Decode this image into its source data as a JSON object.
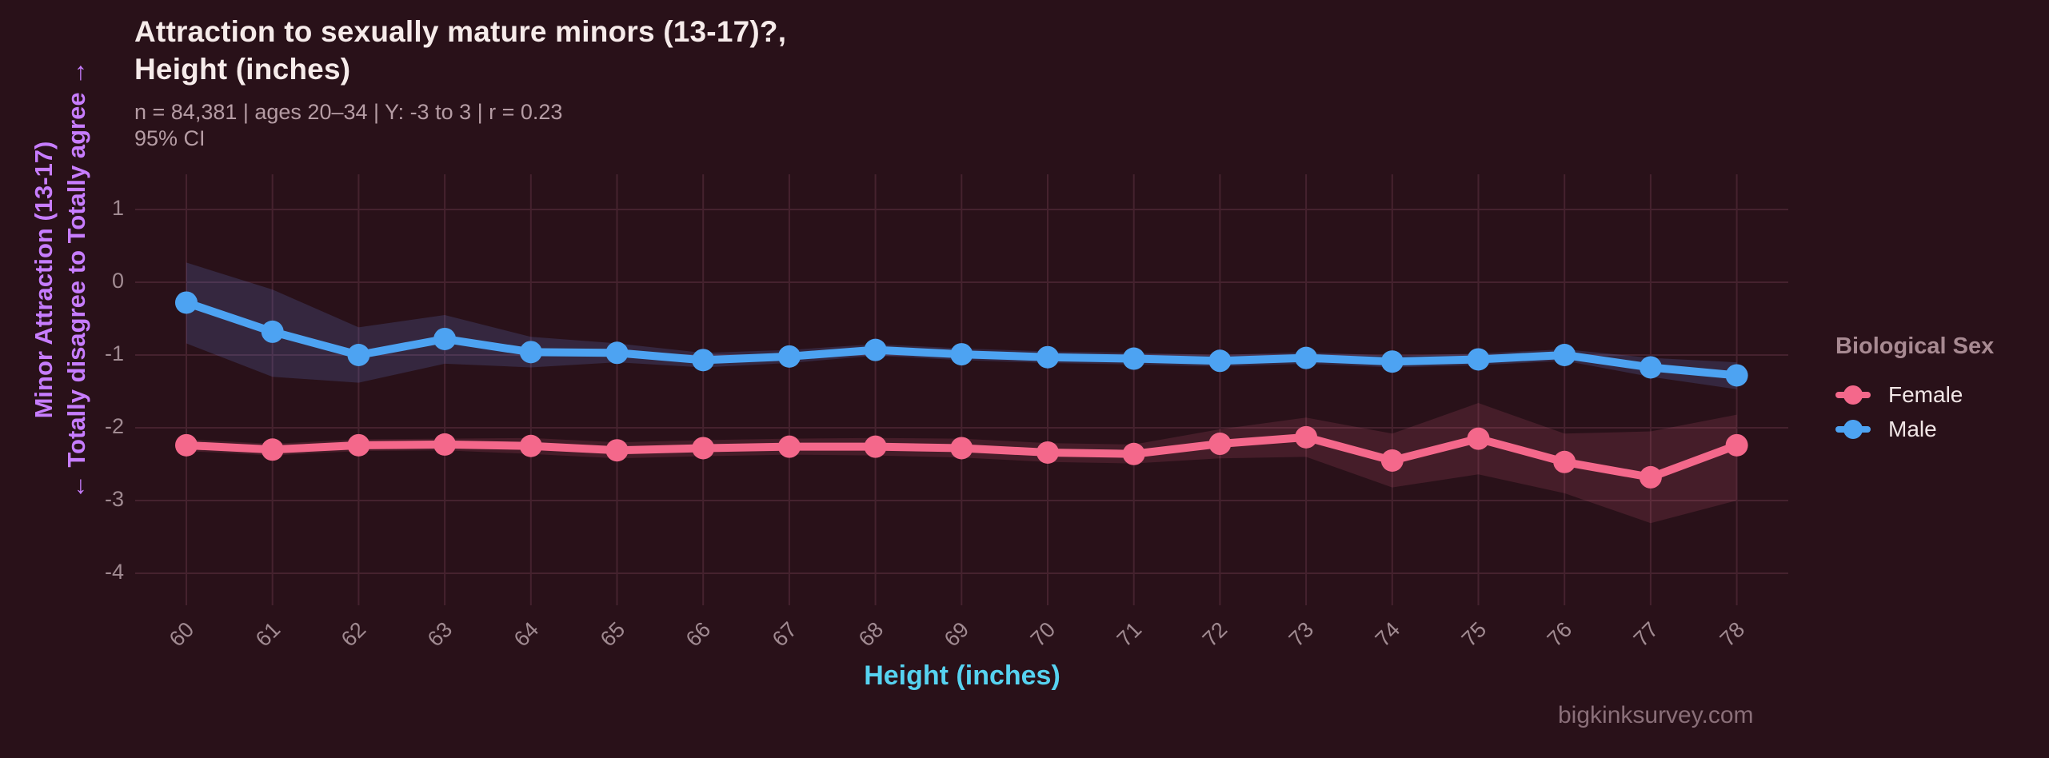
{
  "header": {
    "title_line1": "Attraction to sexually mature minors (13-17)?,",
    "title_line2": "Height (inches)",
    "subtitle": "n = 84,381  |  ages 20–34  |  Y: -3 to 3  |  r = 0.23",
    "subtitle2": "95% CI"
  },
  "y_axis": {
    "title_line1": "Minor Attraction (13-17)",
    "title_line2": "← Totally disagree to Totally agree →"
  },
  "x_axis": {
    "title": "Height (inches)"
  },
  "legend": {
    "title": "Biological Sex",
    "items": [
      {
        "label": "Female",
        "color": "#f4688b"
      },
      {
        "label": "Male",
        "color": "#4da3f2"
      }
    ]
  },
  "footer": {
    "site": "bigkinksurvey.com"
  },
  "colors": {
    "background": "#291119",
    "grid": "#45222e",
    "tick_label": "#a18b92",
    "title": "#f6ebea",
    "subtitle": "#b59ca4",
    "y_title_purple": "#c77dff",
    "x_title_cyan": "#56d2f0",
    "legend_title": "#a88a92",
    "legend_label": "#f1e6e6",
    "footer": "#8a6f79",
    "female": "#f4688b",
    "male": "#4da3f2",
    "female_ci_fill": "rgba(244,104,139,0.14)",
    "male_ci_fill": "rgba(110,150,255,0.17)"
  },
  "chart_data": {
    "type": "line",
    "title": "Attraction to sexually mature minors (13-17)?, Height (inches)",
    "xlabel": "Height (inches)",
    "ylabel": "Minor Attraction (13-17) — Totally disagree to Totally agree",
    "ci_level": "95% CI",
    "legend_position": "right",
    "grid": true,
    "ylim": [
      -4.6,
      1.5
    ],
    "y_ticks": [
      1,
      0,
      -1,
      -2,
      -3,
      -4
    ],
    "x": [
      60,
      61,
      62,
      63,
      64,
      65,
      66,
      67,
      68,
      69,
      70,
      71,
      72,
      73,
      74,
      75,
      76,
      77,
      78
    ],
    "series": [
      {
        "name": "Female",
        "color": "#f4688b",
        "values": [
          -2.24,
          -2.3,
          -2.24,
          -2.23,
          -2.25,
          -2.31,
          -2.28,
          -2.26,
          -2.26,
          -2.28,
          -2.34,
          -2.36,
          -2.22,
          -2.13,
          -2.45,
          -2.15,
          -2.47,
          -2.68,
          -2.24
        ],
        "ci_upper": [
          -2.16,
          -2.22,
          -2.16,
          -2.15,
          -2.14,
          -2.2,
          -2.17,
          -2.15,
          -2.14,
          -2.15,
          -2.21,
          -2.23,
          -2.02,
          -1.86,
          -2.08,
          -1.66,
          -2.08,
          -2.05,
          -1.82
        ],
        "ci_lower": [
          -2.32,
          -2.38,
          -2.32,
          -2.31,
          -2.36,
          -2.42,
          -2.39,
          -2.37,
          -2.38,
          -2.41,
          -2.47,
          -2.49,
          -2.42,
          -2.4,
          -2.82,
          -2.64,
          -2.9,
          -3.31,
          -3.0
        ]
      },
      {
        "name": "Male",
        "color": "#4da3f2",
        "values": [
          -0.28,
          -0.68,
          -1.0,
          -0.78,
          -0.96,
          -0.97,
          -1.07,
          -1.02,
          -0.93,
          -0.99,
          -1.03,
          -1.05,
          -1.08,
          -1.04,
          -1.09,
          -1.06,
          -1.0,
          -1.17,
          -1.28
        ],
        "ci_upper": [
          0.27,
          -0.1,
          -0.62,
          -0.45,
          -0.75,
          -0.84,
          -0.97,
          -0.93,
          -0.85,
          -0.91,
          -0.95,
          -0.97,
          -1.0,
          -0.96,
          -1.01,
          -0.98,
          -0.92,
          -1.04,
          -1.1
        ],
        "ci_lower": [
          -0.84,
          -1.3,
          -1.38,
          -1.12,
          -1.17,
          -1.1,
          -1.17,
          -1.11,
          -1.01,
          -1.07,
          -1.11,
          -1.13,
          -1.16,
          -1.12,
          -1.17,
          -1.14,
          -1.08,
          -1.3,
          -1.47
        ]
      }
    ]
  }
}
